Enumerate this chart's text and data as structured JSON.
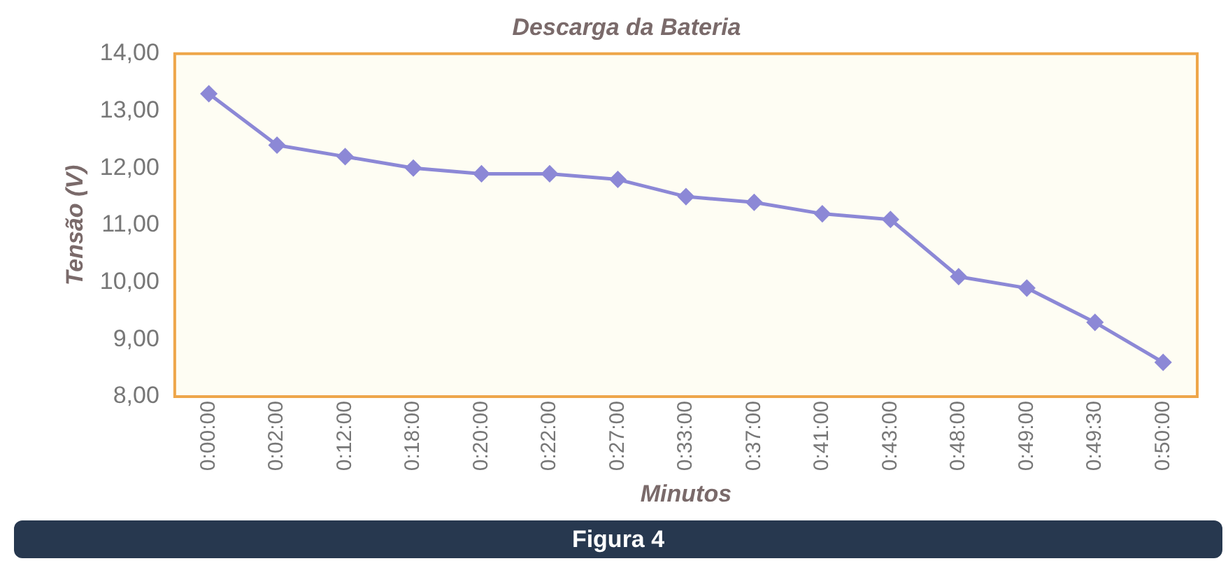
{
  "chart_data": {
    "type": "line",
    "title": "Descarga da Bateria",
    "xlabel": "Minutos",
    "ylabel": "Tensão (V)",
    "categories": [
      "0:00:00",
      "0:02:00",
      "0:12:00",
      "0:18:00",
      "0:20:00",
      "0:22:00",
      "0:27:00",
      "0:33:00",
      "0:37:00",
      "0:41:00",
      "0:43:00",
      "0:48:00",
      "0:49:00",
      "0:49:30",
      "0:50:00"
    ],
    "series": [
      {
        "color": "#8c88d6",
        "values": [
          13.3,
          12.4,
          12.2,
          12.0,
          11.9,
          11.9,
          11.8,
          11.5,
          11.4,
          11.2,
          11.1,
          10.1,
          9.9,
          9.3,
          8.6
        ]
      }
    ],
    "ylim": [
      8,
      14
    ],
    "yticks": [
      {
        "value": 8,
        "label": "8,00"
      },
      {
        "value": 9,
        "label": "9,00"
      },
      {
        "value": 10,
        "label": "10,00"
      },
      {
        "value": 11,
        "label": "11,00"
      },
      {
        "value": 12,
        "label": "12,00"
      },
      {
        "value": 13,
        "label": "13,00"
      },
      {
        "value": 14,
        "label": "14,00"
      }
    ],
    "grid": false,
    "legend": false,
    "marker": "diamond",
    "line_style": "solid",
    "annotations": [
      "Figura 4"
    ]
  }
}
